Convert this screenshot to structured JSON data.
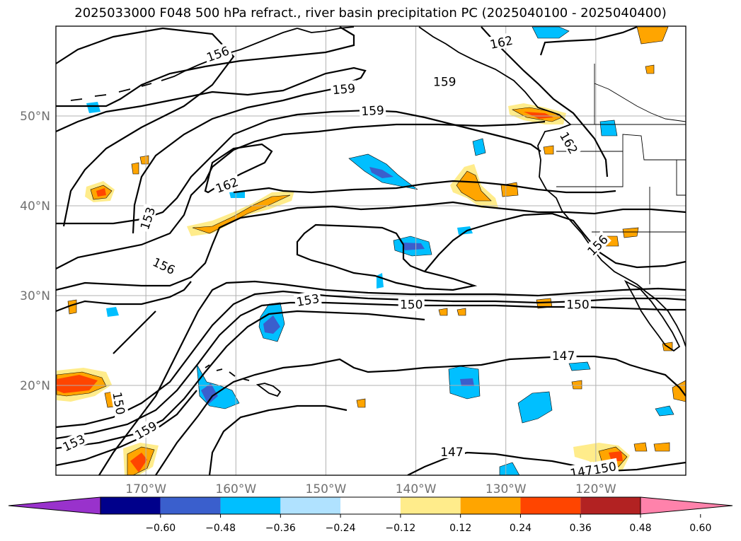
{
  "title": "2025033000 F048 500 hPa refract., river basin precipitation PC (2025040100 - 2025040400)",
  "map": {
    "lat_labels": [
      {
        "lat": 50,
        "text": "50°N"
      },
      {
        "lat": 40,
        "text": "40°N"
      },
      {
        "lat": 30,
        "text": "30°N"
      },
      {
        "lat": 20,
        "text": "20°N"
      }
    ],
    "lon_labels": [
      {
        "lon": -170,
        "text": "170°W"
      },
      {
        "lon": -160,
        "text": "160°W"
      },
      {
        "lon": -150,
        "text": "150°W"
      },
      {
        "lon": -140,
        "text": "140°W"
      },
      {
        "lon": -130,
        "text": "130°W"
      },
      {
        "lon": -120,
        "text": "120°W"
      }
    ],
    "gridline_color": "#b0b0b0",
    "contour_labels": [
      {
        "text": "156",
        "lon": -162.0,
        "lat": 56.9,
        "rot": -20
      },
      {
        "text": "159",
        "lon": -148.0,
        "lat": 53.0,
        "rot": -5
      },
      {
        "text": "159",
        "lon": -144.8,
        "lat": 50.6,
        "rot": -3
      },
      {
        "text": "162",
        "lon": -130.5,
        "lat": 58.2,
        "rot": -12
      },
      {
        "text": "159",
        "lon": -136.8,
        "lat": 53.8,
        "rot": 0
      },
      {
        "text": "162",
        "lon": -161.0,
        "lat": 42.3,
        "rot": -20
      },
      {
        "text": "153",
        "lon": -169.8,
        "lat": 38.6,
        "rot": -72
      },
      {
        "text": "156",
        "lon": -168.0,
        "lat": 33.3,
        "rot": 25
      },
      {
        "text": "153",
        "lon": -152.0,
        "lat": 29.5,
        "rot": -10
      },
      {
        "text": "150",
        "lon": -140.5,
        "lat": 29.0,
        "rot": 0
      },
      {
        "text": "150",
        "lon": -122.0,
        "lat": 29.0,
        "rot": 0
      },
      {
        "text": "162",
        "lon": -123.0,
        "lat": 47.0,
        "rot": 60
      },
      {
        "text": "156",
        "lon": -119.8,
        "lat": 35.6,
        "rot": -45
      },
      {
        "text": "147",
        "lon": -123.6,
        "lat": 23.3,
        "rot": 0
      },
      {
        "text": "150",
        "lon": -173.0,
        "lat": 18.0,
        "rot": 80
      },
      {
        "text": "153",
        "lon": -178.0,
        "lat": 13.6,
        "rot": -25
      },
      {
        "text": "159",
        "lon": -170.0,
        "lat": 15.0,
        "rot": -30
      },
      {
        "text": "147",
        "lon": -136.0,
        "lat": 12.6,
        "rot": 0
      },
      {
        "text": "147",
        "lon": -121.6,
        "lat": 10.4,
        "rot": -10
      },
      {
        "text": "150",
        "lon": -119.0,
        "lat": 10.8,
        "rot": -10
      }
    ]
  },
  "colorbar": {
    "ticks": [
      "−0.60",
      "−0.48",
      "−0.36",
      "−0.24",
      "−0.12",
      "0.12",
      "0.24",
      "0.36",
      "0.48",
      "0.60"
    ],
    "colors": [
      "#9932cc",
      "#00008b",
      "#3a5fcd",
      "#00bfff",
      "#b0e2ff",
      "#ffffff",
      "#ffec8b",
      "#ffa500",
      "#ff4500",
      "#b22222",
      "#ff82ab"
    ]
  }
}
